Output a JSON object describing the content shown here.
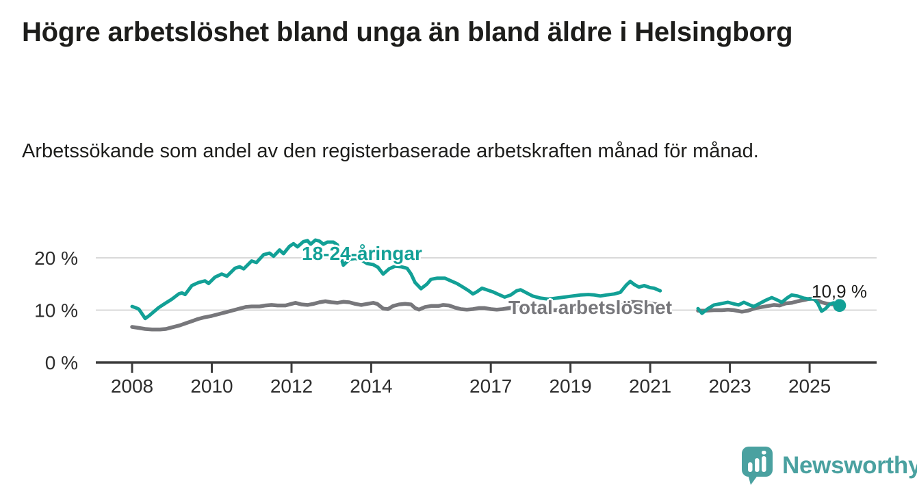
{
  "header": {
    "title": "Högre arbetslöshet bland unga än bland äldre i Helsingborg",
    "subtitle": "Arbetssökande som andel av den registerbaserade arbetskraften månad för månad."
  },
  "chart_data": {
    "type": "line",
    "title": "Högre arbetslöshet bland unga än bland äldre i Helsingborg",
    "subtitle": "Arbetssökande som andel av den registerbaserade arbetskraften månad för månad.",
    "y_unit": "%",
    "grid": "horizontal",
    "x_axis": {
      "ticks": [
        2008,
        2010,
        2012,
        2014,
        2017,
        2019,
        2021,
        2023,
        2025
      ],
      "min": 2007.1,
      "max": 2026.7
    },
    "y_axis": {
      "min": 0,
      "max": 25,
      "ticks": [
        {
          "value": 0,
          "label": "0 %"
        },
        {
          "value": 10,
          "label": "10 %"
        },
        {
          "value": 20,
          "label": "20 %"
        }
      ]
    },
    "series": [
      {
        "name": "Total arbetslöshet",
        "color": "#77777b",
        "width": 5.5,
        "segments": [
          [
            [
              2008.0,
              6.8
            ],
            [
              2008.17,
              6.6
            ],
            [
              2008.33,
              6.4
            ],
            [
              2008.5,
              6.3
            ],
            [
              2008.7,
              6.3
            ],
            [
              2008.85,
              6.4
            ],
            [
              2009.0,
              6.7
            ],
            [
              2009.2,
              7.1
            ],
            [
              2009.35,
              7.5
            ],
            [
              2009.5,
              7.9
            ],
            [
              2009.65,
              8.3
            ],
            [
              2009.8,
              8.6
            ],
            [
              2010.0,
              8.9
            ],
            [
              2010.2,
              9.3
            ],
            [
              2010.4,
              9.7
            ],
            [
              2010.55,
              10.0
            ],
            [
              2010.7,
              10.3
            ],
            [
              2010.85,
              10.6
            ],
            [
              2011.0,
              10.7
            ],
            [
              2011.2,
              10.7
            ],
            [
              2011.35,
              10.9
            ],
            [
              2011.5,
              11.0
            ],
            [
              2011.65,
              10.9
            ],
            [
              2011.85,
              10.9
            ],
            [
              2012.0,
              11.2
            ],
            [
              2012.1,
              11.4
            ],
            [
              2012.25,
              11.1
            ],
            [
              2012.4,
              11.0
            ],
            [
              2012.55,
              11.2
            ],
            [
              2012.7,
              11.5
            ],
            [
              2012.85,
              11.7
            ],
            [
              2013.0,
              11.5
            ],
            [
              2013.15,
              11.4
            ],
            [
              2013.3,
              11.6
            ],
            [
              2013.45,
              11.5
            ],
            [
              2013.6,
              11.2
            ],
            [
              2013.75,
              11.0
            ],
            [
              2013.9,
              11.2
            ],
            [
              2014.05,
              11.4
            ],
            [
              2014.15,
              11.2
            ],
            [
              2014.3,
              10.3
            ],
            [
              2014.42,
              10.2
            ],
            [
              2014.55,
              10.8
            ],
            [
              2014.7,
              11.1
            ],
            [
              2014.85,
              11.2
            ],
            [
              2015.0,
              11.1
            ],
            [
              2015.1,
              10.4
            ],
            [
              2015.2,
              10.1
            ],
            [
              2015.35,
              10.6
            ],
            [
              2015.5,
              10.8
            ],
            [
              2015.68,
              10.8
            ],
            [
              2015.8,
              11.0
            ],
            [
              2015.95,
              10.9
            ],
            [
              2016.1,
              10.5
            ],
            [
              2016.25,
              10.2
            ],
            [
              2016.4,
              10.1
            ],
            [
              2016.55,
              10.2
            ],
            [
              2016.7,
              10.4
            ],
            [
              2016.85,
              10.4
            ],
            [
              2017.0,
              10.2
            ],
            [
              2017.15,
              10.1
            ],
            [
              2017.3,
              10.2
            ],
            [
              2017.45,
              10.4
            ],
            [
              2017.6,
              10.6
            ],
            [
              2017.8,
              10.5
            ],
            [
              2018.0,
              10.3
            ],
            [
              2018.25,
              10.1
            ],
            [
              2018.5,
              10.0
            ],
            [
              2018.75,
              10.0
            ],
            [
              2019.0,
              10.1
            ],
            [
              2019.25,
              10.2
            ],
            [
              2019.5,
              10.3
            ],
            [
              2019.75,
              10.4
            ],
            [
              2020.0,
              10.6
            ],
            [
              2020.25,
              11.1
            ],
            [
              2020.5,
              11.6
            ],
            [
              2020.75,
              11.5
            ],
            [
              2021.0,
              11.3
            ],
            [
              2021.25,
              11.0
            ]
          ],
          [
            [
              2022.2,
              9.9
            ],
            [
              2022.4,
              9.9
            ],
            [
              2022.6,
              10.0
            ],
            [
              2022.8,
              10.0
            ],
            [
              2022.95,
              10.1
            ],
            [
              2023.1,
              10.0
            ],
            [
              2023.3,
              9.7
            ],
            [
              2023.45,
              9.9
            ],
            [
              2023.65,
              10.4
            ],
            [
              2023.8,
              10.6
            ],
            [
              2023.95,
              10.8
            ],
            [
              2024.1,
              11.0
            ],
            [
              2024.25,
              10.9
            ],
            [
              2024.4,
              11.3
            ],
            [
              2024.55,
              11.4
            ],
            [
              2024.7,
              11.7
            ],
            [
              2024.9,
              12.0
            ],
            [
              2025.0,
              12.2
            ],
            [
              2025.15,
              12.1
            ],
            [
              2025.3,
              11.5
            ],
            [
              2025.45,
              11.2
            ],
            [
              2025.6,
              11.1
            ],
            [
              2025.7,
              11.0
            ]
          ]
        ]
      },
      {
        "name": "18-24-åringar",
        "color": "#12a096",
        "width": 5,
        "segments": [
          [
            [
              2008.0,
              10.7
            ],
            [
              2008.08,
              10.5
            ],
            [
              2008.17,
              10.2
            ],
            [
              2008.33,
              8.4
            ],
            [
              2008.42,
              8.9
            ],
            [
              2008.5,
              9.4
            ],
            [
              2008.67,
              10.5
            ],
            [
              2008.83,
              11.3
            ],
            [
              2009.0,
              12.1
            ],
            [
              2009.17,
              13.1
            ],
            [
              2009.25,
              13.3
            ],
            [
              2009.33,
              13.0
            ],
            [
              2009.5,
              14.7
            ],
            [
              2009.67,
              15.3
            ],
            [
              2009.83,
              15.6
            ],
            [
              2009.92,
              15.1
            ],
            [
              2010.08,
              16.3
            ],
            [
              2010.25,
              16.9
            ],
            [
              2010.38,
              16.5
            ],
            [
              2010.58,
              18.0
            ],
            [
              2010.7,
              18.3
            ],
            [
              2010.8,
              17.9
            ],
            [
              2011.0,
              19.4
            ],
            [
              2011.12,
              19.1
            ],
            [
              2011.3,
              20.6
            ],
            [
              2011.45,
              20.9
            ],
            [
              2011.55,
              20.3
            ],
            [
              2011.7,
              21.5
            ],
            [
              2011.8,
              20.8
            ],
            [
              2011.95,
              22.2
            ],
            [
              2012.05,
              22.7
            ],
            [
              2012.15,
              22.1
            ],
            [
              2012.3,
              23.1
            ],
            [
              2012.4,
              23.3
            ],
            [
              2012.48,
              22.6
            ],
            [
              2012.6,
              23.4
            ],
            [
              2012.7,
              23.2
            ],
            [
              2012.8,
              22.6
            ],
            [
              2012.9,
              23.0
            ],
            [
              2013.05,
              23.0
            ],
            [
              2013.15,
              22.5
            ],
            [
              2013.3,
              18.6
            ],
            [
              2013.45,
              19.7
            ],
            [
              2013.6,
              19.9
            ],
            [
              2013.75,
              19.6
            ],
            [
              2013.9,
              18.9
            ],
            [
              2014.05,
              18.7
            ],
            [
              2014.17,
              18.2
            ],
            [
              2014.3,
              16.9
            ],
            [
              2014.45,
              17.9
            ],
            [
              2014.6,
              18.4
            ],
            [
              2014.75,
              18.3
            ],
            [
              2014.9,
              18.0
            ],
            [
              2015.0,
              16.9
            ],
            [
              2015.1,
              15.3
            ],
            [
              2015.25,
              14.1
            ],
            [
              2015.4,
              15.0
            ],
            [
              2015.5,
              15.9
            ],
            [
              2015.65,
              16.1
            ],
            [
              2015.85,
              16.1
            ],
            [
              2016.0,
              15.6
            ],
            [
              2016.15,
              15.1
            ],
            [
              2016.3,
              14.4
            ],
            [
              2016.45,
              13.7
            ],
            [
              2016.55,
              13.1
            ],
            [
              2016.65,
              13.5
            ],
            [
              2016.78,
              14.2
            ],
            [
              2016.9,
              13.9
            ],
            [
              2017.05,
              13.5
            ],
            [
              2017.2,
              13.0
            ],
            [
              2017.35,
              12.5
            ],
            [
              2017.5,
              12.9
            ],
            [
              2017.65,
              13.7
            ],
            [
              2017.75,
              13.9
            ],
            [
              2017.9,
              13.3
            ],
            [
              2018.05,
              12.7
            ],
            [
              2018.25,
              12.3
            ],
            [
              2018.45,
              12.1
            ],
            [
              2018.65,
              12.3
            ],
            [
              2018.85,
              12.5
            ],
            [
              2019.05,
              12.7
            ],
            [
              2019.25,
              12.9
            ],
            [
              2019.45,
              13.0
            ],
            [
              2019.6,
              12.9
            ],
            [
              2019.75,
              12.7
            ],
            [
              2019.9,
              12.9
            ],
            [
              2020.1,
              13.1
            ],
            [
              2020.25,
              13.4
            ],
            [
              2020.4,
              14.8
            ],
            [
              2020.5,
              15.5
            ],
            [
              2020.6,
              14.9
            ],
            [
              2020.72,
              14.4
            ],
            [
              2020.85,
              14.7
            ],
            [
              2021.0,
              14.3
            ],
            [
              2021.1,
              14.2
            ],
            [
              2021.25,
              13.7
            ]
          ],
          [
            [
              2022.2,
              10.3
            ],
            [
              2022.3,
              9.4
            ],
            [
              2022.45,
              10.3
            ],
            [
              2022.6,
              11.0
            ],
            [
              2022.75,
              11.2
            ],
            [
              2022.95,
              11.5
            ],
            [
              2023.1,
              11.2
            ],
            [
              2023.22,
              11.0
            ],
            [
              2023.35,
              11.5
            ],
            [
              2023.5,
              11.0
            ],
            [
              2023.6,
              10.7
            ],
            [
              2023.75,
              11.3
            ],
            [
              2023.9,
              11.9
            ],
            [
              2024.05,
              12.4
            ],
            [
              2024.2,
              11.9
            ],
            [
              2024.3,
              11.5
            ],
            [
              2024.45,
              12.4
            ],
            [
              2024.55,
              12.9
            ],
            [
              2024.7,
              12.7
            ],
            [
              2024.85,
              12.3
            ],
            [
              2025.0,
              12.1
            ],
            [
              2025.1,
              12.2
            ],
            [
              2025.2,
              11.4
            ],
            [
              2025.3,
              9.8
            ],
            [
              2025.4,
              10.3
            ],
            [
              2025.5,
              11.1
            ],
            [
              2025.6,
              11.4
            ],
            [
              2025.68,
              11.1
            ],
            [
              2025.75,
              10.9
            ]
          ]
        ],
        "end_dot": {
          "x": 2025.75,
          "y": 10.9,
          "label": "10,9 %"
        }
      }
    ],
    "legend_position": "inline-labels"
  },
  "branding": {
    "name": "Newsworthy",
    "color": "#4aa1a0",
    "icon": "newsworthy-speech-bubble-chart-icon"
  }
}
